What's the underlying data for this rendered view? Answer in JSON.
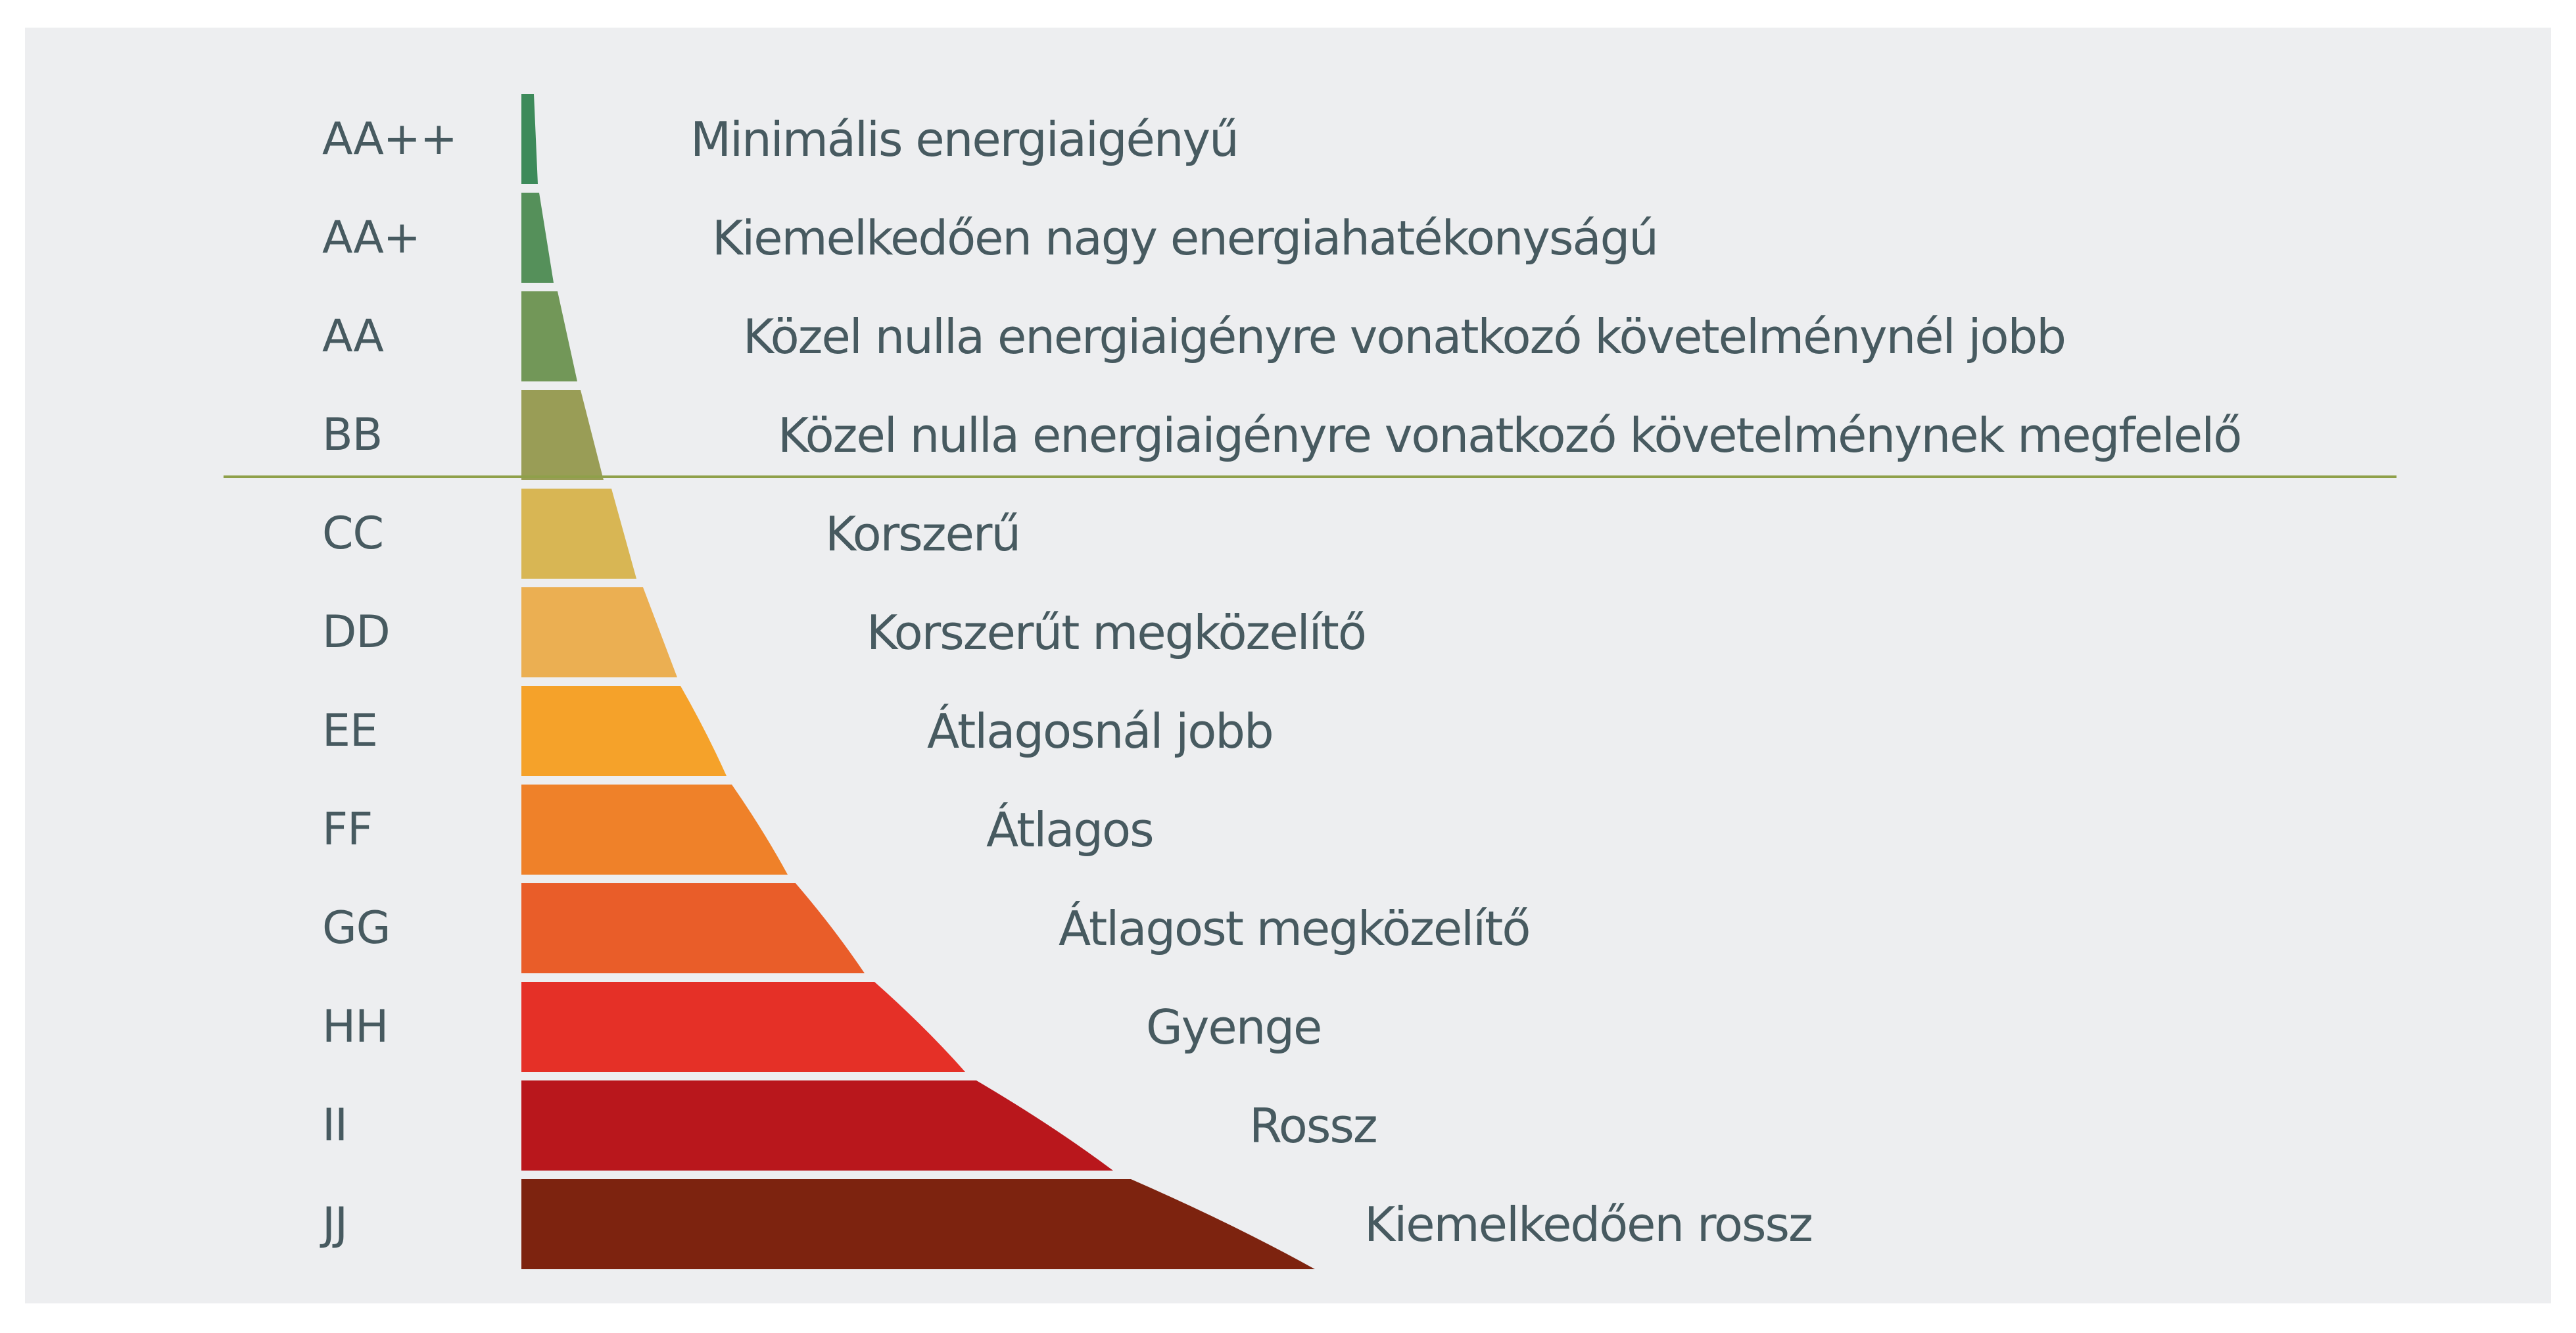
{
  "divider_color": "#8fa04a",
  "text_color": "#475a60",
  "background": "#edeef0",
  "classes": [
    {
      "code": "AA++",
      "description": "Minimális energiaigényű",
      "color": "#3d8a5a"
    },
    {
      "code": "AA+",
      "description": "Kiemelkedően nagy energiahatékonyságú",
      "color": "#55905a"
    },
    {
      "code": "AA",
      "description": "Közel nulla energiaigényre vonatkozó követelménynél jobb",
      "color": "#729758"
    },
    {
      "code": "BB",
      "description": "Közel nulla energiaigényre vonatkozó követelménynek megfelelő",
      "color": "#999d56"
    },
    {
      "code": "CC",
      "description": "Korszerű",
      "color": "#d8b654"
    },
    {
      "code": "DD",
      "description": "Korszerűt megközelítő",
      "color": "#ebaf52"
    },
    {
      "code": "EE",
      "description": "Átlagosnál jobb",
      "color": "#f5a22a"
    },
    {
      "code": "FF",
      "description": "Átlagos",
      "color": "#ef8129"
    },
    {
      "code": "GG",
      "description": "Átlagost megközelítő",
      "color": "#e95d29"
    },
    {
      "code": "HH",
      "description": "Gyenge",
      "color": "#e53027"
    },
    {
      "code": "II",
      "description": "Rossz",
      "color": "#b9171c"
    },
    {
      "code": "JJ",
      "description": "Kiemelkedően rossz",
      "color": "#7d230f"
    }
  ]
}
